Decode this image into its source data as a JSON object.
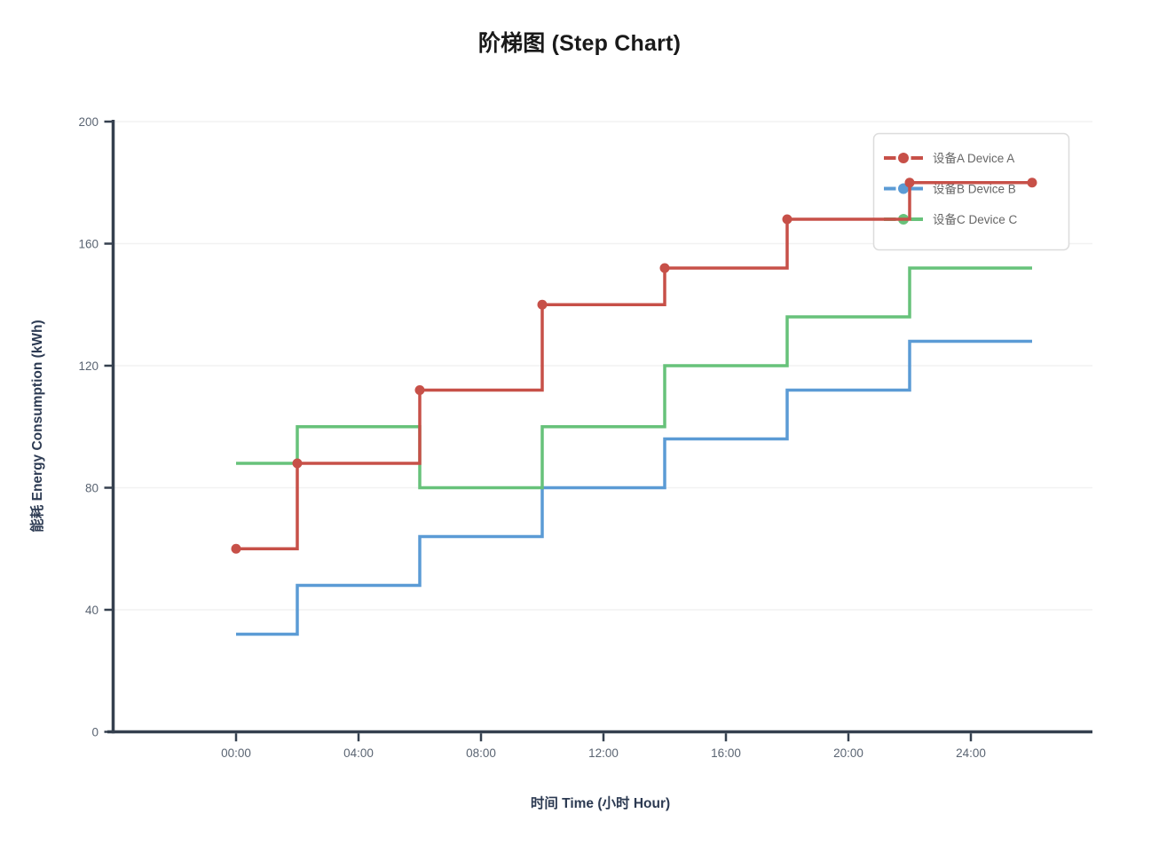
{
  "chart_data": {
    "type": "line",
    "step_mode": "post",
    "title": "阶梯图 (Step Chart)",
    "xlabel": "时间 Time (小时 Hour)",
    "ylabel": "能耗 Energy Consumption (kWh)",
    "x_hours": [
      0,
      2,
      6,
      10,
      14,
      18,
      22,
      26
    ],
    "x_tick_hours": [
      0,
      4,
      8,
      12,
      16,
      20,
      24
    ],
    "x_tick_labels": [
      "00:00",
      "04:00",
      "08:00",
      "12:00",
      "16:00",
      "20:00",
      "24:00"
    ],
    "y_ticks": [
      0,
      40,
      80,
      120,
      160,
      200
    ],
    "ylim": [
      0,
      200
    ],
    "grid": "horizontal",
    "legend_position": "top-right",
    "series": [
      {
        "name": "设备A Device A",
        "slug": "device-a",
        "color": "#c75048",
        "marker": true,
        "values": [
          60,
          88,
          112,
          140,
          152,
          168,
          180,
          180
        ]
      },
      {
        "name": "设备B Device B",
        "slug": "device-b",
        "color": "#5b9bd5",
        "marker": false,
        "values": [
          32,
          48,
          64,
          80,
          96,
          112,
          128,
          128
        ]
      },
      {
        "name": "设备C Device C",
        "slug": "device-c",
        "color": "#67c27a",
        "marker": false,
        "values": [
          88,
          100,
          80,
          100,
          120,
          136,
          152,
          152
        ]
      }
    ]
  },
  "colors": {
    "background": "#ffffff",
    "title": "#1a1a1a",
    "axis": "#35404f",
    "axis_title": "#2c3a52",
    "tick_label": "#5a6472",
    "gridline": "#f2f2f2",
    "legend_text": "#666666",
    "legend_border": "#dcdcdc",
    "legend_bg": "#ffffff"
  }
}
